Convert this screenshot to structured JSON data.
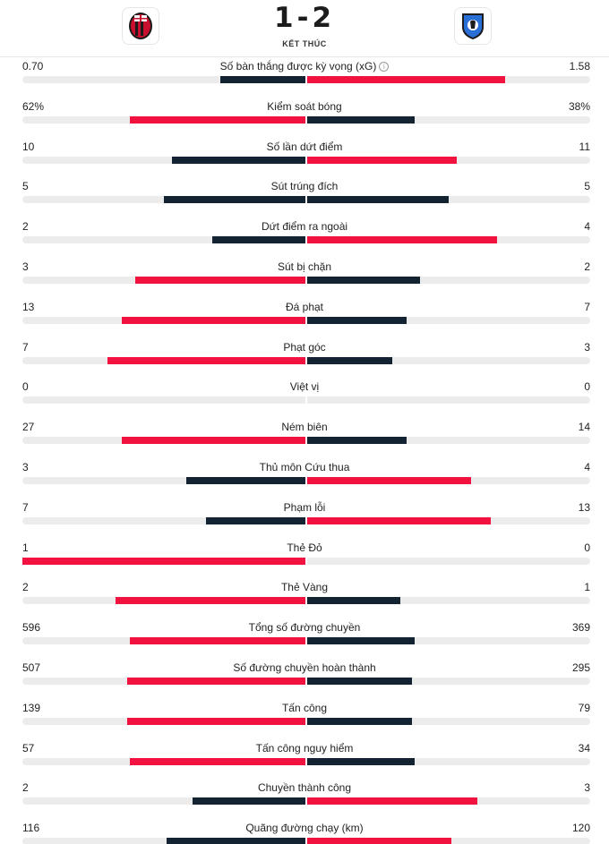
{
  "match": {
    "score_home": "1",
    "score_separator": "-",
    "score_away": "2",
    "status": "KẾT THÚC",
    "home_logo_icon": "ac-milan-crest-icon",
    "away_logo_icon": "atalanta-crest-icon"
  },
  "colors": {
    "higher": "#f2123f",
    "lower": "#132331",
    "track": "#ececec"
  },
  "stats": [
    {
      "label": "Số bàn thắng được kỳ vọng (xG)",
      "home": "0.70",
      "away": "1.58",
      "home_frac": 0.3,
      "away_frac": 0.7,
      "info": true
    },
    {
      "label": "Kiểm soát bóng",
      "home": "62%",
      "away": "38%",
      "home_frac": 0.62,
      "away_frac": 0.38
    },
    {
      "label": "Số lần dứt điểm",
      "home": "10",
      "away": "11",
      "home_frac": 0.47,
      "away_frac": 0.53
    },
    {
      "label": "Sút trúng đích",
      "home": "5",
      "away": "5",
      "home_frac": 0.5,
      "away_frac": 0.5
    },
    {
      "label": "Dứt điểm ra ngoài",
      "home": "2",
      "away": "4",
      "home_frac": 0.33,
      "away_frac": 0.67
    },
    {
      "label": "Sút bị chặn",
      "home": "3",
      "away": "2",
      "home_frac": 0.6,
      "away_frac": 0.4
    },
    {
      "label": "Đá phạt",
      "home": "13",
      "away": "7",
      "home_frac": 0.65,
      "away_frac": 0.35
    },
    {
      "label": "Phạt góc",
      "home": "7",
      "away": "3",
      "home_frac": 0.7,
      "away_frac": 0.3
    },
    {
      "label": "Việt vị",
      "home": "0",
      "away": "0",
      "home_frac": 0,
      "away_frac": 0
    },
    {
      "label": "Ném biên",
      "home": "27",
      "away": "14",
      "home_frac": 0.65,
      "away_frac": 0.35
    },
    {
      "label": "Thủ môn Cứu thua",
      "home": "3",
      "away": "4",
      "home_frac": 0.42,
      "away_frac": 0.58
    },
    {
      "label": "Phạm lỗi",
      "home": "7",
      "away": "13",
      "home_frac": 0.35,
      "away_frac": 0.65
    },
    {
      "label": "Thẻ Đỏ",
      "home": "1",
      "away": "0",
      "home_frac": 1.0,
      "away_frac": 0
    },
    {
      "label": "Thẻ Vàng",
      "home": "2",
      "away": "1",
      "home_frac": 0.67,
      "away_frac": 0.33
    },
    {
      "label": "Tổng số đường chuyền",
      "home": "596",
      "away": "369",
      "home_frac": 0.62,
      "away_frac": 0.38
    },
    {
      "label": "Số đường chuyền hoàn thành",
      "home": "507",
      "away": "295",
      "home_frac": 0.63,
      "away_frac": 0.37
    },
    {
      "label": "Tấn công",
      "home": "139",
      "away": "79",
      "home_frac": 0.63,
      "away_frac": 0.37
    },
    {
      "label": "Tấn công nguy hiểm",
      "home": "57",
      "away": "34",
      "home_frac": 0.62,
      "away_frac": 0.38
    },
    {
      "label": "Chuyền thành công",
      "home": "2",
      "away": "3",
      "home_frac": 0.4,
      "away_frac": 0.6
    },
    {
      "label": "Quãng đường chạy (km)",
      "home": "116",
      "away": "120",
      "home_frac": 0.49,
      "away_frac": 0.51
    }
  ]
}
